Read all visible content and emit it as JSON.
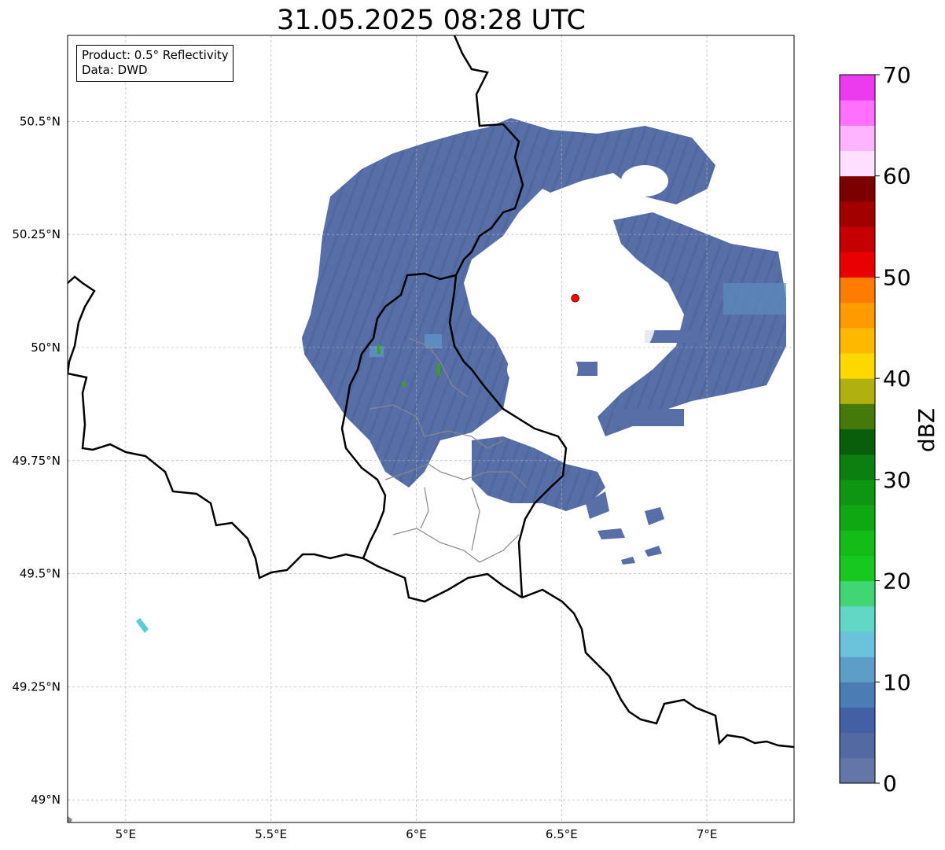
{
  "title": "31.05.2025 08:28 UTC",
  "legend": {
    "product": "Product: 0.5° Reflectivity",
    "source": "Data: DWD"
  },
  "map": {
    "lon_range": [
      4.8,
      7.3
    ],
    "lat_range": [
      48.95,
      50.69
    ],
    "radar_site": {
      "lon": 6.547,
      "lat": 50.109,
      "color": "#ff0000"
    },
    "gridlines": true,
    "lon_ticks": [
      {
        "value": 5.0,
        "label": "5°E"
      },
      {
        "value": 5.5,
        "label": "5.5°E"
      },
      {
        "value": 6.0,
        "label": "6°E"
      },
      {
        "value": 6.5,
        "label": "6.5°E"
      },
      {
        "value": 7.0,
        "label": "7°E"
      }
    ],
    "lat_ticks": [
      {
        "value": 49.0,
        "label": "49°N"
      },
      {
        "value": 49.25,
        "label": "49.25°N"
      },
      {
        "value": 49.5,
        "label": "49.5°N"
      },
      {
        "value": 49.75,
        "label": "49.75°N"
      },
      {
        "value": 50.0,
        "label": "50°N"
      },
      {
        "value": 50.25,
        "label": "50.25°N"
      },
      {
        "value": 50.5,
        "label": "50.5°N"
      }
    ]
  },
  "colorbar": {
    "unit": "dBZ",
    "min": 0,
    "max": 70,
    "tick_labels": [
      "0",
      "10",
      "20",
      "30",
      "40",
      "50",
      "60",
      "70"
    ],
    "colors": [
      "#6476a8",
      "#5269a1",
      "#4360a4",
      "#4b7cb4",
      "#5d9ec8",
      "#6ac2db",
      "#62d7c6",
      "#3fd673",
      "#16c81f",
      "#13bc17",
      "#10a812",
      "#0e9512",
      "#0b7f10",
      "#085e0a",
      "#457a0a",
      "#b0b00e",
      "#ffd800",
      "#ffb800",
      "#ff9a00",
      "#ff7c00",
      "#e80000",
      "#c60000",
      "#a20000",
      "#7c0000",
      "#ffdfff",
      "#ffb4ff",
      "#ff70ff",
      "#ec3aef"
    ]
  },
  "radar_echo_colors": {
    "main": "#586ea6",
    "light": "#5c8cc0",
    "green": "#3aa01a"
  }
}
